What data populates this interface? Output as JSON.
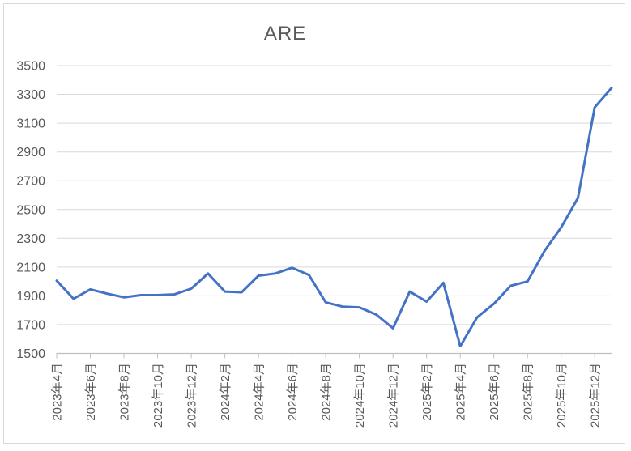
{
  "chart": {
    "title": "ARE"
  },
  "chart_data": {
    "type": "line",
    "title": "ARE",
    "categories": [
      "2023年4月",
      "2023年5月",
      "2023年6月",
      "2023年7月",
      "2023年8月",
      "2023年9月",
      "2023年10月",
      "2023年11月",
      "2023年12月",
      "2024年1月",
      "2024年2月",
      "2024年3月",
      "2024年4月",
      "2024年5月",
      "2024年6月",
      "2024年7月",
      "2024年8月",
      "2024年9月",
      "2024年10月",
      "2024年11月",
      "2024年12月",
      "2025年1月",
      "2025年2月",
      "2025年3月",
      "2025年4月",
      "2025年5月",
      "2025年6月",
      "2025年7月",
      "2025年8月",
      "2025年9月",
      "2025年10月",
      "2025年11月",
      "2025年12月",
      "2026年1月"
    ],
    "values": [
      2005,
      1880,
      1945,
      1915,
      1890,
      1905,
      1905,
      1910,
      1950,
      2055,
      1930,
      1925,
      2040,
      2055,
      2095,
      2045,
      1855,
      1825,
      1820,
      1770,
      1675,
      1930,
      1860,
      1990,
      1550,
      1750,
      1845,
      1970,
      2000,
      2210,
      2375,
      2580,
      3210,
      3345
    ],
    "x_tick_labels": [
      "2023年4月",
      "2023年6月",
      "2023年8月",
      "2023年10月",
      "2023年12月",
      "2024年2月",
      "2024年4月",
      "2024年6月",
      "2024年8月",
      "2024年10月",
      "2024年12月",
      "2025年2月",
      "2025年4月",
      "2025年6月",
      "2025年8月",
      "2025年10月",
      "2025年12月"
    ],
    "y_tick_labels": [
      "1500",
      "1700",
      "1900",
      "2100",
      "2300",
      "2500",
      "2700",
      "2900",
      "3100",
      "3300",
      "3500"
    ],
    "ylim": [
      1500,
      3500
    ],
    "y_tick_step": 200,
    "xlabel": "",
    "ylabel": "",
    "grid": true,
    "legend_position": "none",
    "series_color": "#4472C4",
    "gridline_color": "#d9d9d9",
    "axis_color": "#bfbfbf",
    "label_color": "#595959",
    "title_color": "#595959"
  }
}
